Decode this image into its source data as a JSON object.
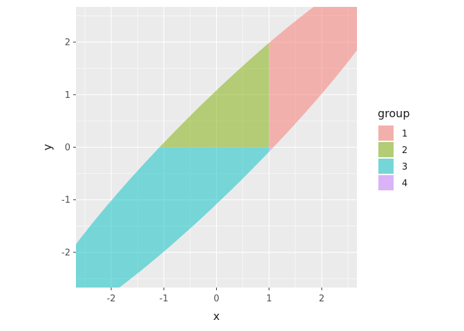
{
  "chart_data": {
    "type": "area",
    "description_free": true,
    "xlabel": "x",
    "ylabel": "y",
    "xlim": [
      -2.67,
      2.67
    ],
    "ylim": [
      -2.67,
      2.67
    ],
    "x_ticks": [
      -2,
      -1,
      0,
      1,
      2
    ],
    "y_ticks": [
      -2,
      -1,
      0,
      1,
      2
    ],
    "x_tick_labels": [
      "-2",
      "-1",
      "0",
      "1",
      "2"
    ],
    "y_tick_labels": [
      "-2",
      "-1",
      "0",
      "1",
      "2"
    ],
    "grid": true,
    "ellipse": {
      "center": [
        0,
        0
      ],
      "covariance": [
        [
          2,
          1.9
        ],
        [
          1.9,
          2
        ]
      ],
      "level": 2.45
    },
    "split": {
      "x": 1,
      "y": 0
    },
    "legend": {
      "title": "group",
      "position": "right",
      "entries": [
        {
          "label": "1",
          "color": "#F8766D"
        },
        {
          "label": "2",
          "color": "#7CAE00"
        },
        {
          "label": "3",
          "color": "#00BFC4"
        },
        {
          "label": "4",
          "color": "#C77CFF"
        }
      ]
    },
    "series": [
      {
        "name": "1",
        "region": "x >= 1, y >= 0",
        "color": "#F8766D"
      },
      {
        "name": "2",
        "region": "x <= 1, y >= 0",
        "color": "#7CAE00"
      },
      {
        "name": "3",
        "region": "x <= 1, y <= 0",
        "color": "#00BFC4"
      },
      {
        "name": "4",
        "region": "x >= 1, y <= 0",
        "color": "#C77CFF"
      }
    ],
    "fill_alpha": 0.5,
    "colors": {
      "panel_bg": "#EBEBEB",
      "grid": "#FFFFFF",
      "tick_color": "#333333"
    }
  }
}
